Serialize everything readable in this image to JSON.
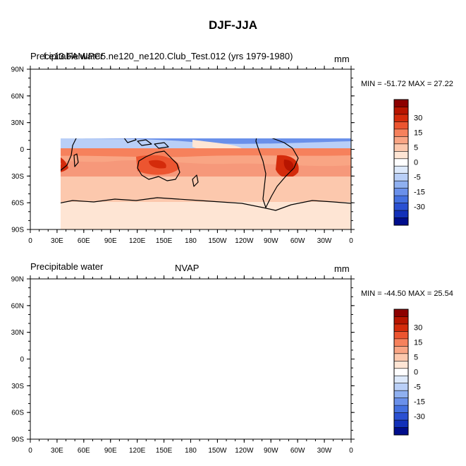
{
  "figure_title": "DJF-JJA",
  "panels": [
    {
      "left_title": "Precipitable water",
      "center_title": "f.e13.FAMIPC5.ne120_ne120.Club_Test.012 (yrs 1979-1980)",
      "units": "mm",
      "stats": "MIN = -51.72 MAX =  27.22"
    },
    {
      "left_title": "Precipitable water",
      "center_title": "NVAP",
      "units": "mm",
      "stats": "MIN = -44.50 MAX =  25.54"
    }
  ],
  "lat_labels": [
    "90N",
    "60N",
    "30N",
    "0",
    "30S",
    "60S",
    "90S"
  ],
  "lon_labels": [
    "0",
    "30E",
    "60E",
    "90E",
    "120E",
    "150E",
    "180",
    "150W",
    "120W",
    "90W",
    "60W",
    "30W",
    "0"
  ],
  "colorbar": {
    "labels": [
      "30",
      "15",
      "5",
      "0",
      "-5",
      "-15",
      "-30"
    ],
    "colors": [
      "#8c0000",
      "#b71500",
      "#d42b0b",
      "#ec5530",
      "#f6815c",
      "#f9a584",
      "#fcc8ad",
      "#fee5d4",
      "#ffffff",
      "#dde9fb",
      "#b9cff7",
      "#8fb0f0",
      "#6a90ea",
      "#4470e0",
      "#2a50d2",
      "#1230b9",
      "#000d8c"
    ]
  },
  "map_colors": {
    "ocean_neg_deep": "#3f68df",
    "ocean_neg": "#7098ea",
    "neg_light": "#b9cff7",
    "pos_light": "#fcd4bd",
    "pos_mid": "#f6987a",
    "pos_strong": "#e6532c",
    "pos_deep": "#c8320f"
  }
}
